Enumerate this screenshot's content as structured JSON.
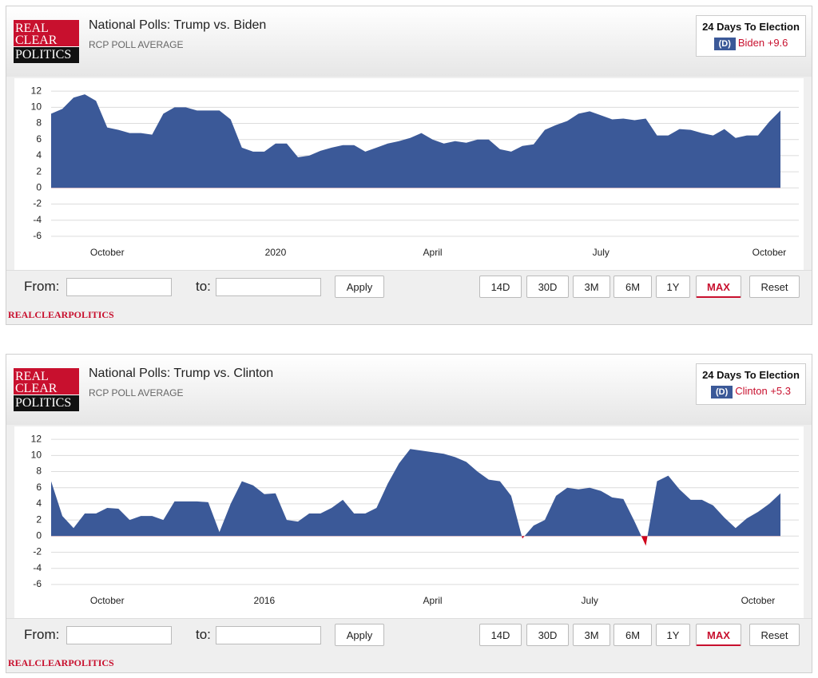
{
  "widgets": [
    {
      "logo": [
        "REAL",
        "CLEAR",
        "POLITICS"
      ],
      "title": "National Polls: Trump vs. Biden",
      "subtitle": "RCP POLL AVERAGE",
      "countdown": "24 Days To Election",
      "party": "(D)",
      "leader": "Biden +9.6",
      "chart_data": {
        "type": "area",
        "categories": [
          null,
          null,
          null,
          null,
          null,
          "October",
          null,
          null,
          null,
          null,
          null,
          null,
          null,
          null,
          null,
          null,
          null,
          null,
          null,
          null,
          "2020",
          null,
          null,
          null,
          null,
          null,
          null,
          null,
          null,
          null,
          null,
          null,
          null,
          null,
          "April",
          null,
          null,
          null,
          null,
          null,
          null,
          null,
          null,
          null,
          null,
          null,
          null,
          null,
          null,
          "July",
          null,
          null,
          null,
          null,
          null,
          null,
          null,
          null,
          null,
          null,
          null,
          null,
          null,
          null,
          "October",
          null
        ],
        "series": [
          {
            "color": "#3b5998",
            "negative_color": "#d0021b",
            "values": [
              9.2,
              9.8,
              11.2,
              11.6,
              10.8,
              7.5,
              7.2,
              6.8,
              6.8,
              6.6,
              9.2,
              10,
              10,
              9.6,
              9.6,
              9.6,
              8.5,
              5,
              4.5,
              4.5,
              5.5,
              5.5,
              3.8,
              4,
              4.6,
              5,
              5.3,
              5.3,
              4.5,
              5,
              5.5,
              5.8,
              6.2,
              6.8,
              6,
              5.5,
              5.8,
              5.6,
              6,
              6,
              4.8,
              4.5,
              5.2,
              5.4,
              7.2,
              7.8,
              8.3,
              9.2,
              9.5,
              9,
              8.5,
              8.6,
              8.4,
              8.6,
              6.5,
              6.5,
              7.3,
              7.2,
              6.8,
              6.5,
              7.3,
              6.2,
              6.5,
              6.5,
              8.2,
              9.6
            ]
          }
        ],
        "ylim": [
          -7,
          13.3
        ],
        "yticks": [
          12,
          10,
          8,
          6,
          4,
          2,
          0,
          -2,
          -4,
          -6
        ],
        "grid": true
      },
      "controls": {
        "from": "From:",
        "to": "to:",
        "apply": "Apply",
        "ranges": [
          "14D",
          "30D",
          "3M",
          "6M",
          "1Y",
          "MAX"
        ],
        "selected": "MAX",
        "reset": "Reset"
      },
      "footer": "REALCLEARPOLITICS"
    },
    {
      "logo": [
        "REAL",
        "CLEAR",
        "POLITICS"
      ],
      "title": "National Polls: Trump vs. Clinton",
      "subtitle": "RCP POLL AVERAGE",
      "countdown": "24 Days To Election",
      "party": "(D)",
      "leader": "Clinton +5.3",
      "chart_data": {
        "type": "area",
        "categories": [
          null,
          null,
          null,
          null,
          null,
          "October",
          null,
          null,
          null,
          null,
          null,
          null,
          null,
          null,
          null,
          null,
          null,
          null,
          null,
          "2016",
          null,
          null,
          null,
          null,
          null,
          null,
          null,
          null,
          null,
          null,
          null,
          null,
          null,
          null,
          "April",
          null,
          null,
          null,
          null,
          null,
          null,
          null,
          null,
          null,
          null,
          null,
          null,
          null,
          "July",
          null,
          null,
          null,
          null,
          null,
          null,
          null,
          null,
          null,
          null,
          null,
          null,
          null,
          null,
          "October",
          null,
          null
        ],
        "series": [
          {
            "color": "#3b5998",
            "negative_color": "#d0021b",
            "values": [
              6.8,
              2.5,
              1,
              2.8,
              2.8,
              3.5,
              3.4,
              2,
              2.5,
              2.5,
              2,
              4.3,
              4.3,
              4.3,
              4.2,
              0.5,
              4,
              6.8,
              6.3,
              5.2,
              5.3,
              2,
              1.8,
              2.8,
              2.8,
              3.5,
              4.5,
              2.8,
              2.8,
              3.5,
              6.5,
              9,
              10.8,
              10.6,
              10.4,
              10.2,
              9.8,
              9.2,
              8,
              7,
              6.8,
              5,
              -0.3,
              1.3,
              2,
              5,
              6,
              5.8,
              6,
              5.6,
              4.8,
              4.6,
              1.8,
              -1.2,
              6.8,
              7.5,
              5.8,
              4.5,
              4.5,
              3.8,
              2.3,
              1,
              2.2,
              3,
              4,
              5.3
            ]
          }
        ],
        "ylim": [
          -7,
          13.3
        ],
        "yticks": [
          12,
          10,
          8,
          6,
          4,
          2,
          0,
          -2,
          -4,
          -6
        ],
        "grid": true
      },
      "controls": {
        "from": "From:",
        "to": "to:",
        "apply": "Apply",
        "ranges": [
          "14D",
          "30D",
          "3M",
          "6M",
          "1Y",
          "MAX"
        ],
        "selected": "MAX",
        "reset": "Reset"
      },
      "footer": "REALCLEARPOLITICS"
    }
  ]
}
